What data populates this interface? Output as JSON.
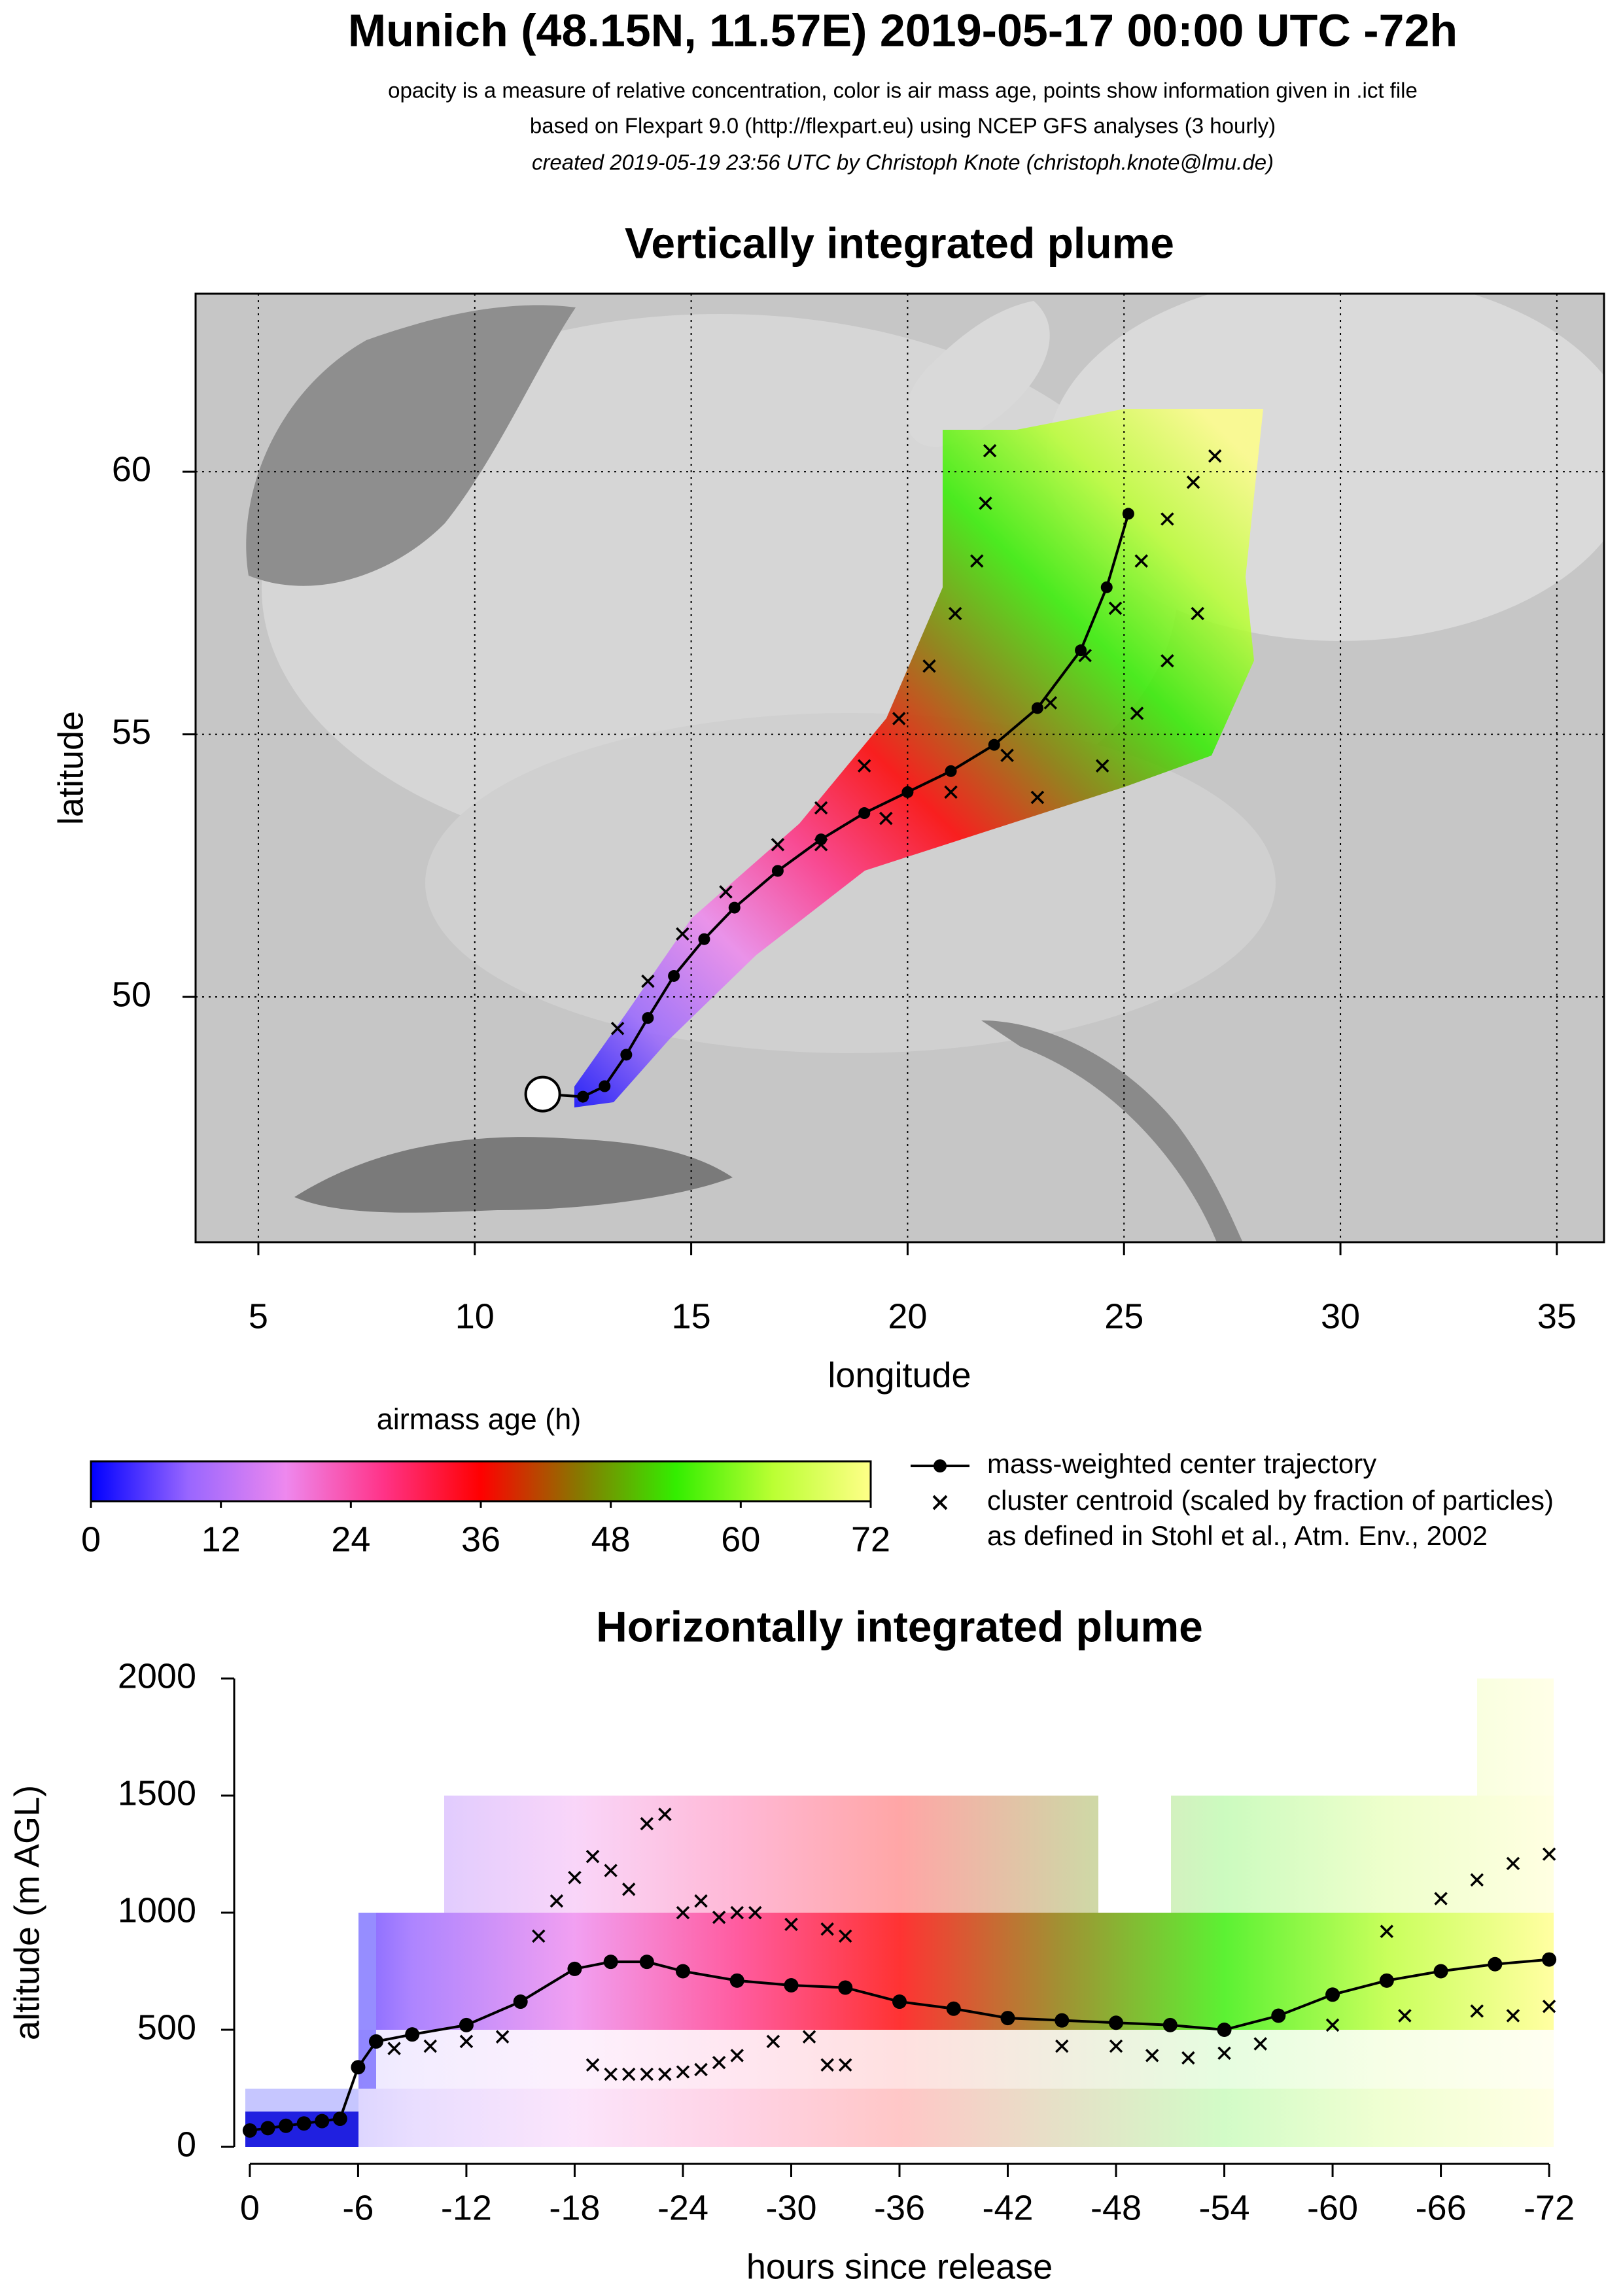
{
  "header": {
    "title": "Munich (48.15N, 11.57E) 2019-05-17 00:00 UTC -72h",
    "lines": [
      "opacity is a measure of relative concentration, color is air mass age, points show information given in .ict file",
      "based on Flexpart 9.0 (http://flexpart.eu) using NCEP GFS analyses (3 hourly)",
      "created 2019-05-19 23:56 UTC by Christoph Knote (christoph.knote@lmu.de)"
    ]
  },
  "chart_data": [
    {
      "type": "map",
      "title": "Vertically integrated plume",
      "x_label": "longitude",
      "y_label": "latitude",
      "xlim": [
        3.55,
        36.09
      ],
      "ylim": [
        45.33,
        63.39
      ],
      "xticks": [
        5,
        10,
        15,
        20,
        25,
        30,
        35
      ],
      "yticks": [
        50,
        55,
        60
      ],
      "grid": true,
      "release": {
        "x": 11.57,
        "y": 48.15
      },
      "series": [
        {
          "name": "mass-weighted center trajectory",
          "color": "#000000",
          "marker": "dot",
          "x": [
            11.6,
            12.5,
            13.0,
            13.5,
            14.0,
            14.6,
            15.3,
            16.0,
            17.0,
            18.0,
            19.0,
            20.0,
            21.0,
            22.0,
            23.0,
            24.0,
            24.6,
            25.1
          ],
          "values": [
            48.15,
            48.1,
            48.3,
            48.9,
            49.6,
            50.4,
            51.1,
            51.7,
            52.4,
            53.0,
            53.5,
            53.9,
            54.3,
            54.8,
            55.5,
            56.6,
            57.8,
            59.2
          ]
        },
        {
          "name": "cluster centroid (scaled by fraction of particles)",
          "color": "#000000",
          "marker": "cross",
          "x": [
            13.3,
            14.0,
            14.8,
            15.8,
            17.0,
            18.0,
            19.0,
            19.8,
            20.5,
            21.1,
            21.6,
            21.8,
            21.9,
            18.0,
            19.5,
            21.0,
            22.3,
            23.3,
            24.1,
            24.8,
            25.4,
            26.0,
            26.6,
            27.1,
            23.0,
            24.5,
            25.3,
            26.0,
            26.7
          ],
          "values": [
            49.4,
            50.3,
            51.2,
            52.0,
            52.9,
            53.6,
            54.4,
            55.3,
            56.3,
            57.3,
            58.3,
            59.4,
            60.4,
            52.9,
            53.4,
            53.9,
            54.6,
            55.6,
            56.5,
            57.4,
            58.3,
            59.1,
            59.8,
            60.3,
            53.8,
            54.4,
            55.4,
            56.4,
            57.3
          ]
        }
      ],
      "legend_note": "as defined in Stohl et al., Atm. Env., 2002"
    },
    {
      "type": "colorbar",
      "label": "airmass age (h)",
      "lim": [
        0,
        72
      ],
      "ticks": [
        0,
        12,
        24,
        36,
        48,
        60,
        72
      ],
      "colors": [
        "#0000ff",
        "#9966ff",
        "#ee88ee",
        "#ff3388",
        "#ff0000",
        "#887700",
        "#33ee00",
        "#bbff33",
        "#ffff88"
      ]
    },
    {
      "type": "line",
      "title": "Horizontally integrated plume",
      "x_label": "hours since release",
      "y_label": "altitude (m AGL)",
      "xlim": [
        0.25,
        -72.25
      ],
      "ylim": [
        0,
        2000
      ],
      "xticks": [
        0,
        -6,
        -12,
        -18,
        -24,
        -30,
        -36,
        -42,
        -48,
        -54,
        -60,
        -66,
        -72
      ],
      "yticks": [
        0,
        500,
        1000,
        1500,
        2000
      ],
      "series": [
        {
          "color": "#000000",
          "marker": "dot",
          "x": [
            0,
            -1,
            -2,
            -3,
            -4,
            -5,
            -6,
            -7,
            -9,
            -12,
            -15,
            -18,
            -20,
            -22,
            -24,
            -27,
            -30,
            -33,
            -36,
            -39,
            -42,
            -45,
            -48,
            -51,
            -54,
            -57,
            -60,
            -63,
            -66,
            -69,
            -72
          ],
          "values": [
            70,
            80,
            90,
            100,
            110,
            120,
            340,
            450,
            480,
            520,
            620,
            760,
            790,
            790,
            750,
            710,
            690,
            680,
            620,
            590,
            550,
            540,
            530,
            520,
            500,
            560,
            650,
            710,
            750,
            780,
            800
          ]
        },
        {
          "color": "#000000",
          "marker": "cross",
          "x": [
            -8,
            -10,
            -12,
            -14,
            -16,
            -17,
            -18,
            -19,
            -20,
            -21,
            -22,
            -23,
            -24,
            -25,
            -26,
            -27,
            -28,
            -30,
            -32,
            -33,
            -19,
            -20,
            -21,
            -22,
            -23,
            -24,
            -25,
            -26,
            -27,
            -29,
            -31,
            -32,
            -33,
            -45,
            -48,
            -50,
            -52,
            -54,
            -56,
            -60,
            -64,
            -68,
            -70,
            -72,
            -63,
            -66,
            -68,
            -70,
            -72
          ],
          "values": [
            420,
            430,
            450,
            470,
            900,
            1050,
            1150,
            1240,
            1180,
            1100,
            1380,
            1420,
            1000,
            1050,
            980,
            1000,
            1000,
            950,
            930,
            900,
            350,
            310,
            310,
            310,
            310,
            320,
            330,
            360,
            390,
            450,
            470,
            350,
            350,
            430,
            430,
            390,
            380,
            400,
            440,
            520,
            560,
            580,
            560,
            600,
            920,
            1060,
            1140,
            1210,
            1250
          ]
        }
      ]
    }
  ]
}
